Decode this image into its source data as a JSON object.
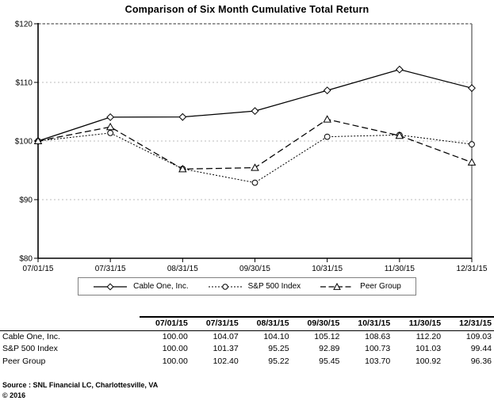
{
  "title": "Comparison of Six Month Cumulative Total Return",
  "chart_data": {
    "type": "line",
    "x": [
      "07/01/15",
      "07/31/15",
      "08/31/15",
      "09/30/15",
      "10/31/15",
      "11/30/15",
      "12/31/15"
    ],
    "series": [
      {
        "name": "Cable One, Inc.",
        "marker": "diamond",
        "dash": "solid",
        "values": [
          100.0,
          104.07,
          104.1,
          105.12,
          108.63,
          112.2,
          109.03
        ]
      },
      {
        "name": "S&P 500 Index",
        "marker": "circle",
        "dash": "dotted",
        "values": [
          100.0,
          101.37,
          95.25,
          92.89,
          100.73,
          101.03,
          99.44
        ]
      },
      {
        "name": "Peer Group",
        "marker": "triangle",
        "dash": "dashed",
        "values": [
          100.0,
          102.4,
          95.22,
          95.45,
          103.7,
          100.92,
          96.36
        ]
      }
    ],
    "ylim": [
      80,
      120
    ],
    "ytick_step": 10,
    "ytick_labels": [
      "$80",
      "$90",
      "$100",
      "$110",
      "$120"
    ],
    "grid": "horizontal-dotted",
    "legend_position": "bottom-center",
    "title": "Comparison of Six Month Cumulative Total Return",
    "xlabel": "",
    "ylabel": ""
  },
  "table": {
    "columns": [
      "07/01/15",
      "07/31/15",
      "08/31/15",
      "09/30/15",
      "10/31/15",
      "11/30/15",
      "12/31/15"
    ],
    "rows": [
      {
        "label": "Cable One, Inc.",
        "values": [
          "100.00",
          "104.07",
          "104.10",
          "105.12",
          "108.63",
          "112.20",
          "109.03"
        ]
      },
      {
        "label": "S&P 500 Index",
        "values": [
          "100.00",
          "101.37",
          "95.25",
          "92.89",
          "100.73",
          "101.03",
          "99.44"
        ]
      },
      {
        "label": "Peer Group",
        "values": [
          "100.00",
          "102.40",
          "95.22",
          "95.45",
          "103.70",
          "100.92",
          "96.36"
        ]
      }
    ]
  },
  "footer": {
    "source": "Source : SNL Financial LC, Charlottesville, VA",
    "copyright": "© 2016"
  },
  "colors": {
    "line": "#000000",
    "grid": "#bbbbbb",
    "plot_border": "#777777",
    "background": "#ffffff"
  }
}
